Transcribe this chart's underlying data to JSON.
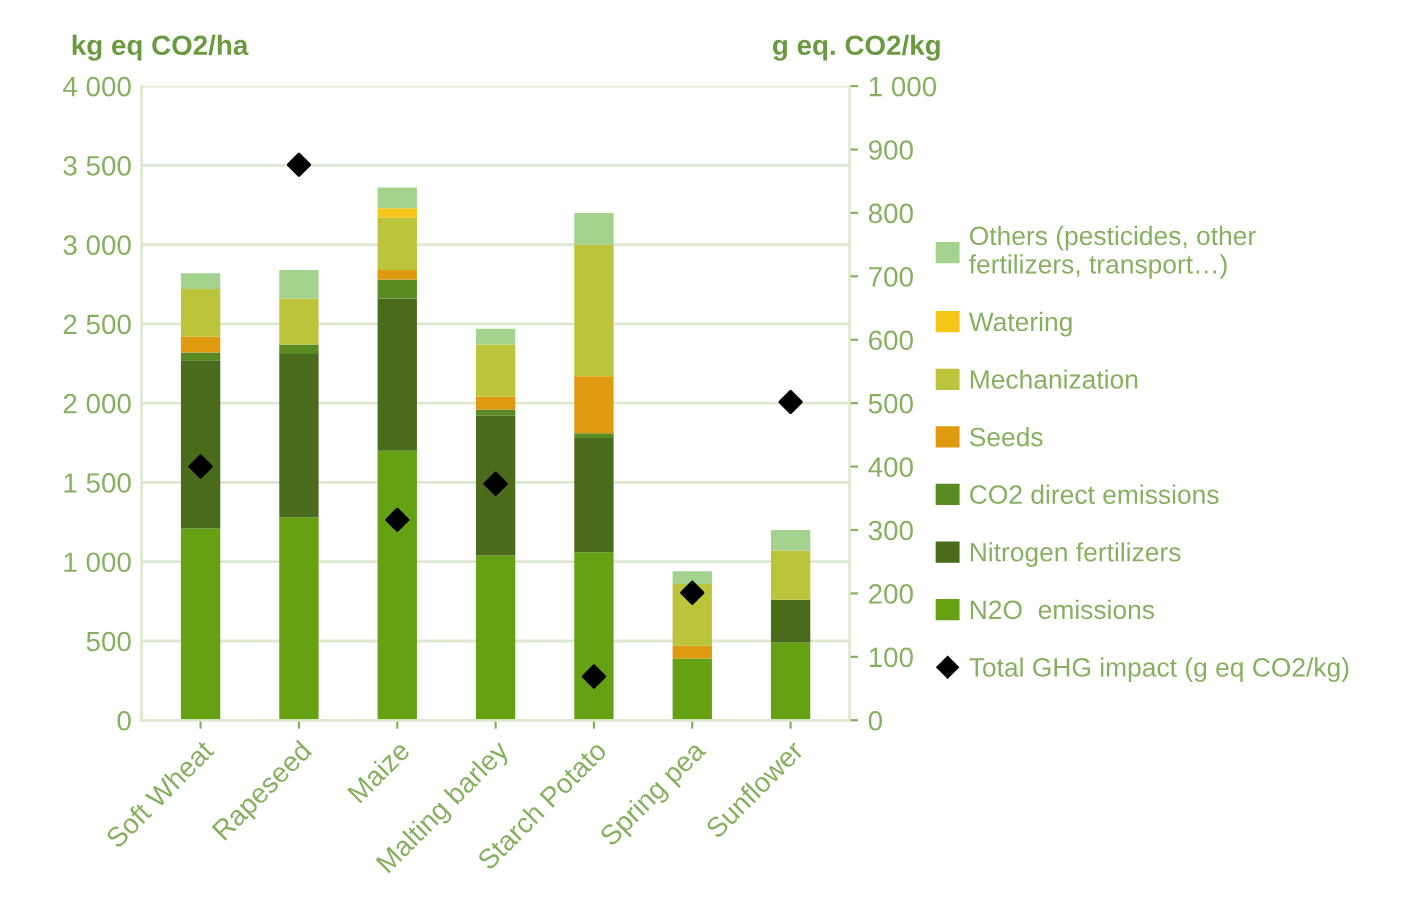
{
  "chart_data": {
    "type": "bar",
    "stacked": true,
    "ylabel": "kg eq CO2/ha",
    "y2label": "g eq. CO2/kg",
    "categories": [
      "Soft Wheat",
      "Rapeseed",
      "Maize",
      "Malting barley",
      "Starch Potato",
      "Spring pea",
      "Sunflower"
    ],
    "series": [
      {
        "name": "N2O  emissions",
        "color": "#66a013",
        "values": [
          1210,
          1280,
          1700,
          1040,
          1060,
          390,
          490
        ]
      },
      {
        "name": "Nitrogen fertilizers",
        "color": "#4a6a1c",
        "values": [
          1060,
          1030,
          960,
          880,
          720,
          0,
          270
        ]
      },
      {
        "name": "CO2 direct emissions",
        "color": "#5a8a22",
        "values": [
          50,
          60,
          120,
          40,
          30,
          0,
          0
        ]
      },
      {
        "name": "Seeds",
        "color": "#e09a10",
        "values": [
          100,
          0,
          60,
          80,
          360,
          80,
          0
        ]
      },
      {
        "name": "Mechanization",
        "color": "#bcc43c",
        "values": [
          300,
          290,
          330,
          330,
          830,
          390,
          310
        ]
      },
      {
        "name": "Watering",
        "color": "#f5c518",
        "values": [
          0,
          0,
          60,
          0,
          0,
          0,
          0
        ]
      },
      {
        "name": "Others (pesticides, other\nfertilizers, transport…)",
        "color": "#a3d38f",
        "values": [
          100,
          180,
          130,
          100,
          200,
          80,
          130
        ]
      },
      {
        "name": "Total GHG impact (g eq CO2/kg)",
        "type": "scatter",
        "axis": "y2",
        "marker": "diamond",
        "color": "#000000",
        "values": [
          400,
          876,
          316,
          373,
          69,
          201,
          502
        ]
      }
    ],
    "ylim": [
      0,
      4000
    ],
    "yticks": [
      0,
      500,
      {
        "value": 1000,
        "label": "1 000"
      },
      {
        "value": 1500,
        "label": "1 500"
      },
      {
        "value": 2000,
        "label": "2 000"
      },
      {
        "value": 2500,
        "label": "2 500"
      },
      {
        "value": 3000,
        "label": "3 000"
      },
      {
        "value": 3500,
        "label": "3 500"
      },
      {
        "value": 4000,
        "label": "4 000"
      }
    ],
    "y2lim": [
      0,
      1000
    ],
    "y2ticks": [
      0,
      100,
      200,
      300,
      400,
      500,
      600,
      700,
      800,
      900,
      {
        "value": 1000,
        "label": "1 000"
      }
    ],
    "grid": "y",
    "legend": "right"
  }
}
